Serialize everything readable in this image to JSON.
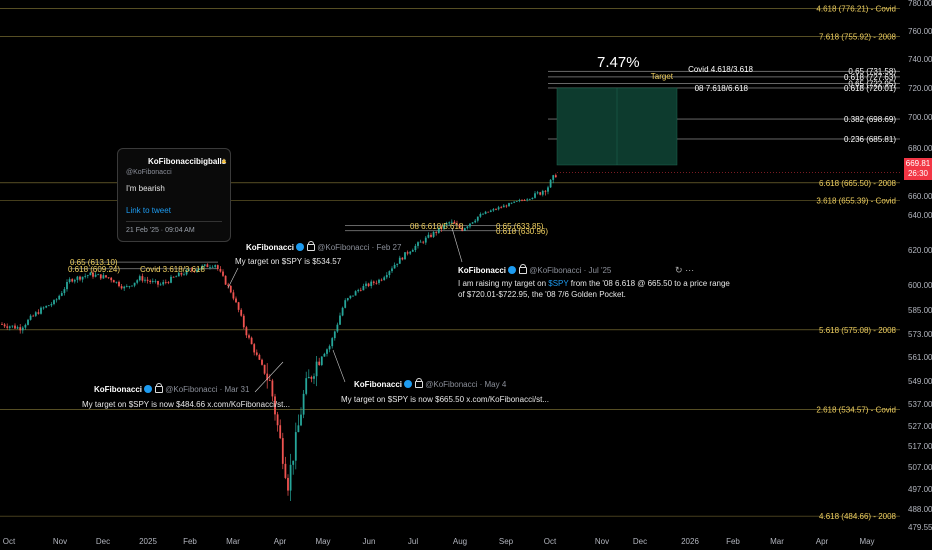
{
  "chart_data": {
    "type": "candlestick",
    "symbol": "SPY",
    "ylim": [
      476,
      782
    ],
    "price_ticks": [
      780.0,
      760.0,
      740.0,
      720.0,
      700.0,
      680.0,
      660.0,
      640.0,
      620.0,
      600.0,
      585.0,
      573.0,
      561.0,
      549.0,
      537.0,
      527.0,
      517.0,
      507.0,
      497.0,
      488.0,
      479.55
    ],
    "x_ticks": [
      "Oct",
      "Nov",
      "Dec",
      "2025",
      "Feb",
      "Mar",
      "Apr",
      "May",
      "Jun",
      "Jul",
      "Aug",
      "Sep",
      "Oct",
      "Nov",
      "Dec",
      "2026",
      "Feb",
      "Mar",
      "Apr",
      "May"
    ],
    "last_price": "669.81",
    "countdown": "26:30",
    "projection_percent": "7.47%",
    "right_levels": [
      {
        "label": "4.618 (776.21) - Covid",
        "price": 776.21
      },
      {
        "label": "7.618 (755.92) - 2008",
        "price": 755.92
      },
      {
        "label": "6.618 (665.50) - 2008",
        "price": 665.5
      },
      {
        "label": "3.618 (655.39) - Covid",
        "price": 655.39
      },
      {
        "label": "5.618 (575.08) - 2008",
        "price": 575.08
      },
      {
        "label": "2.618 (534.57) - Covid",
        "price": 534.57
      },
      {
        "label": "4.618 (484.66) - 2008",
        "price": 484.66
      }
    ],
    "target_levels": [
      {
        "label": "0.65 (731.58)",
        "price": 731.58
      },
      {
        "label": "0.618 (727.63)",
        "price": 727.63
      },
      {
        "label": "0.65 (722.95)",
        "price": 722.95
      },
      {
        "label": "0.618 (720.01)",
        "price": 720.01
      },
      {
        "label": "0.382 (698.69)",
        "price": 698.69
      },
      {
        "label": "0.236 (685.81)",
        "price": 685.81
      }
    ],
    "target_labels": {
      "covid": "Covid 4.618/3.618",
      "target": "Target",
      "y2008": "08 7.618/6.618"
    },
    "left_levels": {
      "l065": "0.65 (613.10)",
      "l0618": "0.618 (609.24)",
      "covid": "Covid 3.618/3.618"
    },
    "mid_levels": {
      "l08": "08 6.618/5.618",
      "l065": "0.65 (633.85)",
      "l0618": "0.618 (630.96)"
    },
    "candles": []
  },
  "popup": {
    "name": "KoFibonaccibigballs",
    "handle": "@KoFibonacci",
    "text": "I'm bearish",
    "link": "Link to tweet",
    "date": "21 Feb '25 · 09:04 AM"
  },
  "tweets": {
    "feb": {
      "name": "KoFibonacci",
      "handle": "@KoFibonacci · Feb 27",
      "text": "My target on $SPY is $534.57"
    },
    "mar": {
      "name": "KoFibonacci",
      "handle": "@KoFibonacci · Mar 31",
      "text": "My target on $SPY is now $484.66  x.com/KoFibonacci/st..."
    },
    "may": {
      "name": "KoFibonacci",
      "handle": "@KoFibonacci · May 4",
      "text": "My target on $SPY is now $665.50  x.com/KoFibonacci/st..."
    },
    "jul": {
      "name": "KoFibonacci",
      "handle": "@KoFibonacci · Jul '25",
      "text1": "I am raising my target on ",
      "cashtag": "$SPY",
      "text1b": " from the '08 6.618 @ 665.50 to a price range",
      "text2": "of $720.01-$722.95, the '08 7/6 Golden Pocket."
    }
  },
  "colors": {
    "up": "#26a69a",
    "down": "#ef5350",
    "level": "#c8b560",
    "target_fill": "#0d3b2e"
  }
}
